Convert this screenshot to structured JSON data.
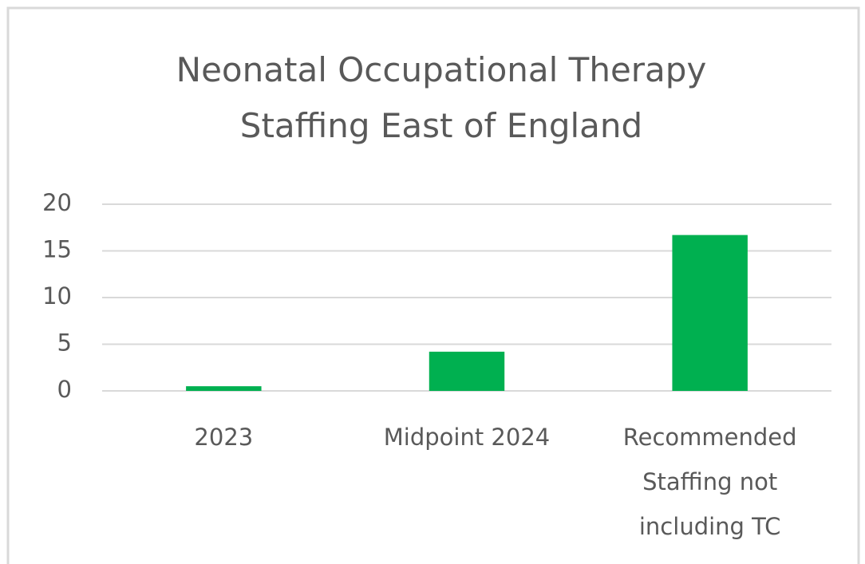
{
  "chart_data": {
    "type": "bar",
    "title": "Neonatal Occupational Therapy Staffing East of England",
    "categories": [
      "2023",
      "Midpoint 2024",
      "Recommended Staffing not including TC"
    ],
    "values": [
      0.5,
      4.2,
      16.7
    ],
    "color": "#00b050",
    "ylim": [
      0,
      20
    ],
    "yticks": [
      0,
      5,
      10,
      15,
      20
    ],
    "grid": true
  }
}
